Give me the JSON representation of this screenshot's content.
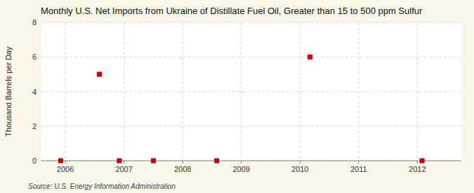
{
  "chart_data": {
    "type": "scatter",
    "title": "Monthly U.S. Net Imports from Ukraine of Distillate Fuel Oil, Greater than 15 to 500 ppm Sulfur",
    "y_label": "Thousand Barrels per Day",
    "annotations": [
      "Source: U.S. Energy Information Administration"
    ],
    "x": [
      2005.92,
      2006.58,
      2006.92,
      2007.5,
      2008.58,
      2010.17,
      2012.08
    ],
    "values": [
      0,
      5,
      0,
      0,
      0,
      6,
      0
    ],
    "color": "#CC0000",
    "marker": "square",
    "xlim": [
      2005.58,
      2012.75
    ],
    "xticks": [
      2006,
      2007,
      2008,
      2009,
      2010,
      2011,
      2012
    ],
    "ylim": [
      0,
      8
    ],
    "yticks": [
      0,
      2,
      4,
      6,
      8
    ],
    "grid": true
  }
}
